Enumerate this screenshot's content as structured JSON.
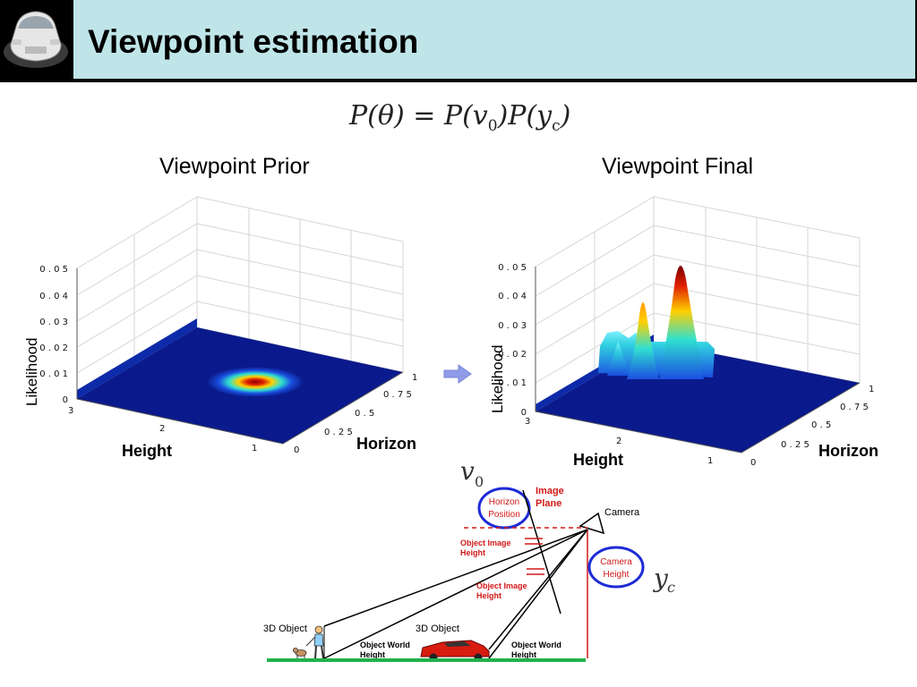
{
  "slide": {
    "title": "Viewpoint estimation",
    "formula": {
      "lhs": "P(θ)",
      "eq": "=",
      "rhs_parts": [
        "P(v",
        "0",
        ")P(y",
        "c",
        ")"
      ]
    }
  },
  "plots": {
    "prior": {
      "title": "Viewpoint Prior",
      "z_label": "Likelihood",
      "x_label": "Height",
      "y_label": "Horizon",
      "z_ticks": [
        "0",
        "0 . 0 1",
        "0 . 0 2",
        "0 . 0 3",
        "0 . 0 4",
        "0 . 0 5"
      ],
      "height_ticks": [
        "3",
        "2",
        "1"
      ],
      "horizon_ticks": [
        "0",
        "0 . 2 5",
        "0 . 5",
        "0 . 7 5",
        "1"
      ]
    },
    "final": {
      "title": "Viewpoint Final",
      "z_label": "Likelihood",
      "x_label": "Height",
      "y_label": "Horizon",
      "z_ticks": [
        "0",
        "0 . 0 1",
        "0 . 0 2",
        "0 . 0 3",
        "0 . 0 4",
        "0 . 0 5"
      ],
      "height_ticks": [
        "3",
        "2",
        "1"
      ],
      "horizon_ticks": [
        "0",
        "0 . 2 5",
        "0 . 5",
        "0 . 7 5",
        "1"
      ]
    }
  },
  "diagram": {
    "v0_label": "v",
    "v0_sub": "0",
    "yc_label": "y",
    "yc_sub": "c",
    "horizon_position": [
      "Horizon",
      "Position"
    ],
    "image_plane": [
      "Image",
      "Plane"
    ],
    "camera": "Camera",
    "camera_height": [
      "Camera",
      "Height"
    ],
    "object_image_height_1": [
      "Object Image",
      "Height"
    ],
    "object_image_height_2": [
      "Object Image",
      "Height"
    ],
    "object_3d_1": "3D Object",
    "object_3d_2": "3D Object",
    "object_world_height_1": [
      "Object World",
      "Height"
    ],
    "object_world_height_2": [
      "Object World",
      "Height"
    ]
  },
  "colors": {
    "title_bar": "#bfe5e8",
    "surface_floor": "#0a1a8c",
    "arrow": "#8f9be8",
    "red_label": "#d01818",
    "ellipse": "#1d2bd6",
    "ground": "#22b14c"
  }
}
